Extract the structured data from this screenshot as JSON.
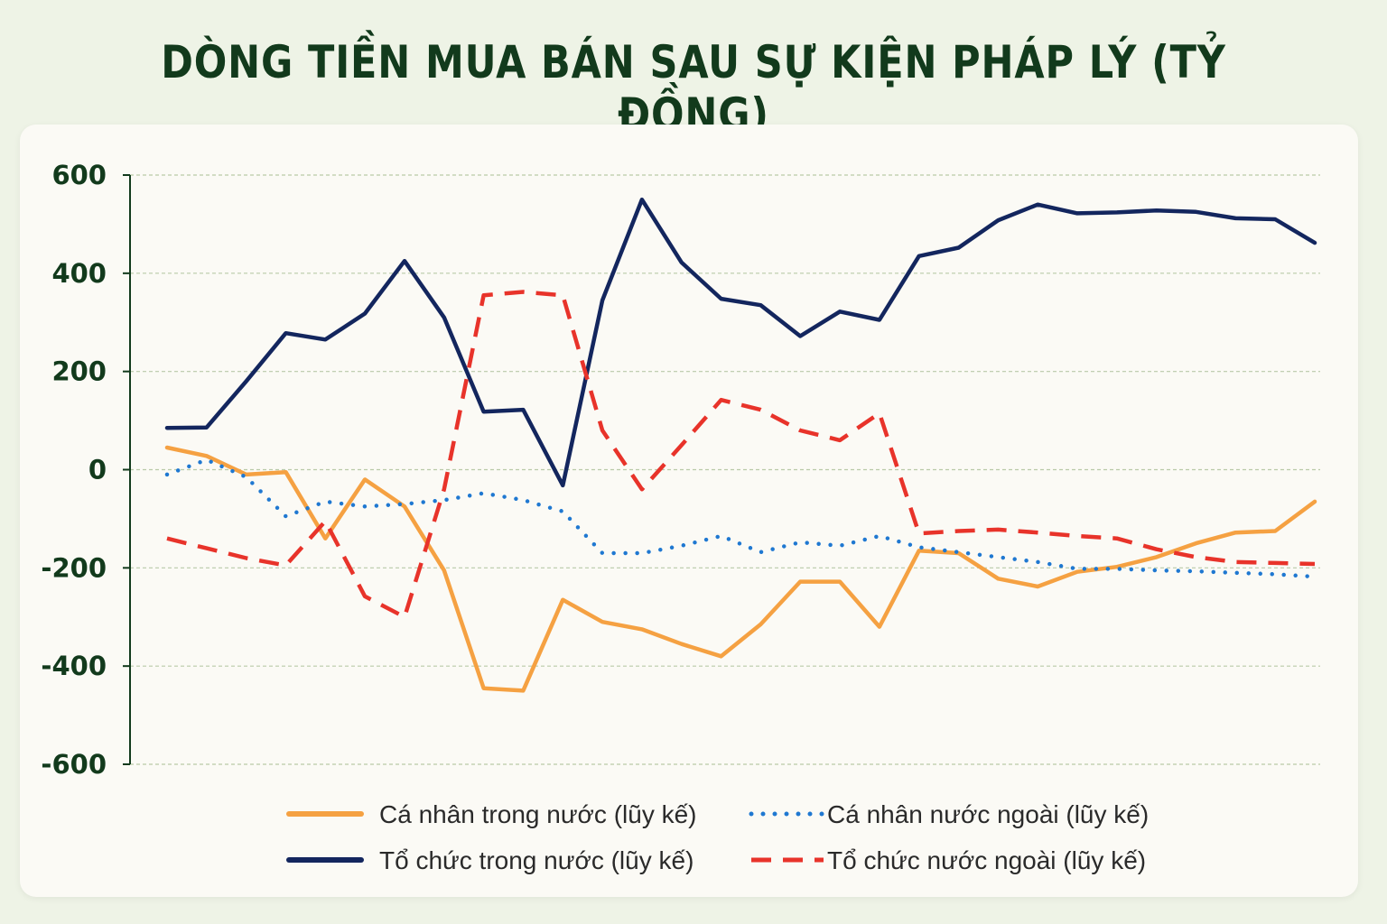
{
  "chart_data": {
    "type": "line",
    "title": "DÒNG TIỀN MUA BÁN SAU SỰ KIỆN PHÁP LÝ (TỶ ĐỒNG)",
    "xlabel": "",
    "ylabel": "",
    "ylim": [
      -600,
      600
    ],
    "yticks": [
      600,
      400,
      200,
      0,
      -200,
      -400,
      -600
    ],
    "yticklabels": [
      "600",
      "400",
      "200",
      "0",
      "-200",
      "-400",
      "-600"
    ],
    "grid": true,
    "legend": "bottom",
    "x": [
      1,
      2,
      3,
      4,
      5,
      6,
      7,
      8,
      9,
      10,
      11,
      12,
      13,
      14,
      15,
      16,
      17,
      18,
      19,
      20,
      21,
      22,
      23,
      24,
      25,
      26,
      27,
      28,
      29,
      30
    ],
    "series": [
      {
        "name": "Cá nhân trong nước (lũy kế)",
        "color": "#f5a142",
        "style": "solid",
        "values": [
          45,
          28,
          -10,
          -5,
          -140,
          -20,
          -75,
          -205,
          -445,
          -450,
          -265,
          -310,
          -325,
          -355,
          -380,
          -315,
          -228,
          -228,
          -320,
          -165,
          -170,
          -222,
          -238,
          -208,
          -198,
          -178,
          -150,
          -128,
          -125,
          -65
        ]
      },
      {
        "name": "Cá nhân nước ngoài (lũy kế)",
        "color": "#1f78d1",
        "style": "dotted",
        "values": [
          -10,
          20,
          -15,
          -95,
          -65,
          -75,
          -70,
          -62,
          -48,
          -62,
          -85,
          -170,
          -170,
          -155,
          -135,
          -168,
          -148,
          -155,
          -135,
          -158,
          -168,
          -178,
          -188,
          -202,
          -202,
          -205,
          -207,
          -210,
          -213,
          -218
        ]
      },
      {
        "name": "Tổ chức trong nước (lũy kế)",
        "color": "#13265e",
        "style": "solid",
        "values": [
          85,
          86,
          180,
          278,
          265,
          318,
          425,
          310,
          118,
          122,
          -32,
          345,
          550,
          422,
          348,
          335,
          272,
          322,
          305,
          435,
          452,
          508,
          540,
          522,
          524,
          528,
          525,
          512,
          510,
          462
        ]
      },
      {
        "name": "Tổ chức nước ngoài (lũy kế)",
        "color": "#e8332a",
        "style": "dashed",
        "values": [
          -140,
          -160,
          -180,
          -195,
          -105,
          -258,
          -300,
          -40,
          355,
          362,
          355,
          80,
          -40,
          50,
          142,
          122,
          80,
          60,
          115,
          -130,
          -125,
          -122,
          -128,
          -135,
          -140,
          -162,
          -178,
          -188,
          -190,
          -192
        ]
      }
    ]
  }
}
